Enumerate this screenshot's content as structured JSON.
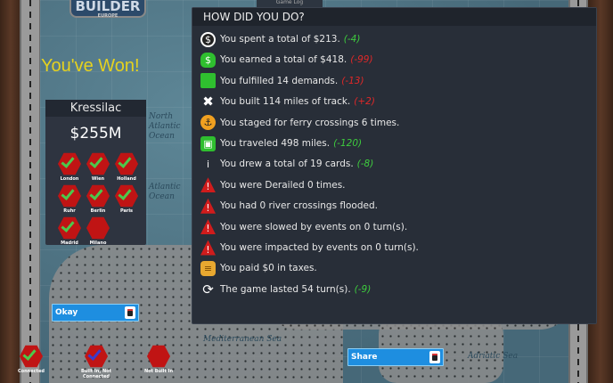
{
  "logo": {
    "title": "BUILDER",
    "subtitle": "EUROPE"
  },
  "game_log_tab": "Game Log",
  "win_message": "You've Won!",
  "player_card": {
    "name": "Kressilac",
    "money": "$255M",
    "cities": [
      {
        "name": "London",
        "status": "connected"
      },
      {
        "name": "Wien",
        "status": "connected"
      },
      {
        "name": "Holland",
        "status": "connected"
      },
      {
        "name": "Ruhr",
        "status": "connected"
      },
      {
        "name": "Berlin",
        "status": "connected"
      },
      {
        "name": "Paris",
        "status": "connected"
      },
      {
        "name": "Madrid",
        "status": "connected"
      },
      {
        "name": "Milano",
        "status": "not-built-in"
      }
    ]
  },
  "map_labels": {
    "north_atlantic": "North Atlantic Ocean",
    "atlantic": "Atlantic Ocean",
    "mediterranean": "Mediterranean Sea",
    "adriatic": "Adriatic Sea"
  },
  "summary": {
    "title": "HOW DID YOU DO?",
    "rows": [
      {
        "icon": "coin-icon",
        "text": "You spent a total of $213.",
        "delta": "(-4)",
        "delta_color": "#3ecb3e"
      },
      {
        "icon": "money-bag-icon",
        "text": "You earned a total of $418.",
        "delta": "(-99)",
        "delta_color": "#e02828"
      },
      {
        "icon": "cube-icon",
        "text": "You fulfilled 14 demands.",
        "delta": "(-13)",
        "delta_color": "#e02828"
      },
      {
        "icon": "tools-icon",
        "text": "You built 114 miles of track.",
        "delta": "(+2)",
        "delta_color": "#e02828"
      },
      {
        "icon": "anchor-icon",
        "text": "You staged for ferry crossings 6 times.",
        "delta": "",
        "delta_color": ""
      },
      {
        "icon": "train-icon",
        "text": "You traveled 498 miles.",
        "delta": "(-120)",
        "delta_color": "#3ecb3e"
      },
      {
        "icon": "info-icon",
        "text": "You drew a total of 19 cards.",
        "delta": "(-8)",
        "delta_color": "#3ecb3e"
      },
      {
        "icon": "warning-icon",
        "text": "You were Derailed 0 times.",
        "delta": "",
        "delta_color": ""
      },
      {
        "icon": "warning-icon",
        "text": "You had 0 river crossings flooded.",
        "delta": "",
        "delta_color": ""
      },
      {
        "icon": "warning-icon",
        "text": "You were slowed by events on 0 turn(s).",
        "delta": "",
        "delta_color": ""
      },
      {
        "icon": "warning-icon",
        "text": "You were impacted by events on 0 turn(s).",
        "delta": "",
        "delta_color": ""
      },
      {
        "icon": "coins-stack-icon",
        "text": "You paid $0 in taxes.",
        "delta": "",
        "delta_color": ""
      },
      {
        "icon": "refresh-icon",
        "text": "The game lasted 54 turn(s).",
        "delta": "(-9)",
        "delta_color": "#3ecb3e"
      }
    ]
  },
  "buttons": {
    "okay": "Okay",
    "share": "Share"
  },
  "legend": [
    {
      "label": "Connected",
      "status": "connected"
    },
    {
      "label": "Built In, Not Connected",
      "status": "built-not-connected"
    },
    {
      "label": "Not Built In",
      "status": "not-built-in"
    }
  ]
}
